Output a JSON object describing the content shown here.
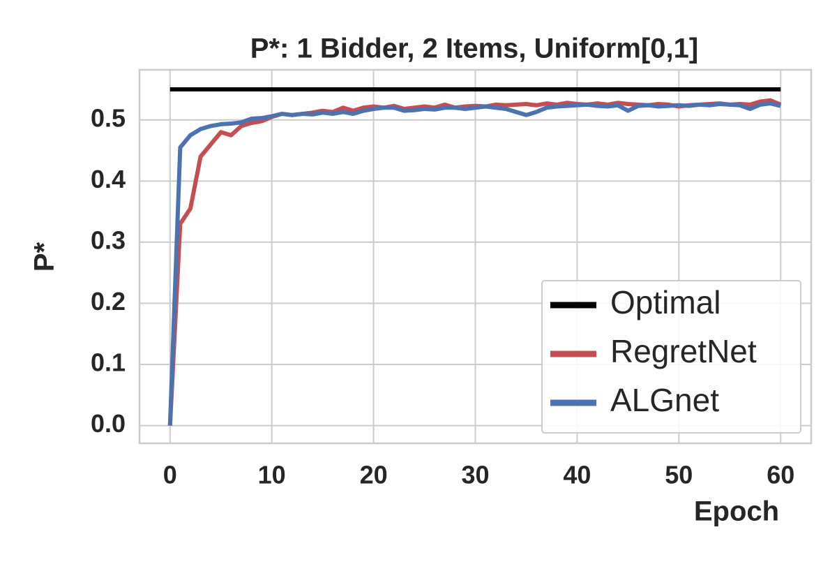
{
  "chart_data": {
    "type": "line",
    "title": "P*: 1 Bidder, 2 Items, Uniform[0,1]",
    "x_label": "Epoch",
    "y_label": "P*",
    "x": [
      0,
      1,
      2,
      3,
      4,
      5,
      6,
      7,
      8,
      9,
      10,
      11,
      12,
      13,
      14,
      15,
      16,
      17,
      18,
      19,
      20,
      21,
      22,
      23,
      24,
      25,
      26,
      27,
      28,
      29,
      30,
      31,
      32,
      33,
      34,
      35,
      36,
      37,
      38,
      39,
      40,
      41,
      42,
      43,
      44,
      45,
      46,
      47,
      48,
      49,
      50,
      51,
      52,
      53,
      54,
      55,
      56,
      57,
      58,
      59,
      60
    ],
    "series": [
      {
        "name": "Optimal",
        "color": "#000000",
        "x": [
          0,
          60
        ],
        "values": [
          0.55,
          0.55
        ]
      },
      {
        "name": "RegretNet",
        "color": "#c44e52",
        "values": [
          0,
          0.33,
          0.355,
          0.44,
          0.46,
          0.48,
          0.475,
          0.49,
          0.495,
          0.498,
          0.505,
          0.51,
          0.508,
          0.51,
          0.512,
          0.515,
          0.513,
          0.52,
          0.515,
          0.52,
          0.522,
          0.52,
          0.523,
          0.518,
          0.52,
          0.522,
          0.52,
          0.525,
          0.52,
          0.522,
          0.523,
          0.522,
          0.525,
          0.524,
          0.525,
          0.526,
          0.524,
          0.527,
          0.525,
          0.528,
          0.526,
          0.525,
          0.527,
          0.525,
          0.528,
          0.526,
          0.525,
          0.524,
          0.526,
          0.525,
          0.522,
          0.524,
          0.525,
          0.526,
          0.527,
          0.525,
          0.526,
          0.525,
          0.53,
          0.532,
          0.525
        ]
      },
      {
        "name": "ALGnet",
        "color": "#4c72b0",
        "values": [
          0,
          0.455,
          0.475,
          0.485,
          0.49,
          0.493,
          0.494,
          0.496,
          0.502,
          0.503,
          0.506,
          0.51,
          0.508,
          0.51,
          0.509,
          0.512,
          0.51,
          0.513,
          0.51,
          0.515,
          0.518,
          0.52,
          0.52,
          0.515,
          0.516,
          0.518,
          0.517,
          0.52,
          0.52,
          0.518,
          0.52,
          0.522,
          0.52,
          0.518,
          0.513,
          0.508,
          0.513,
          0.52,
          0.522,
          0.523,
          0.524,
          0.525,
          0.523,
          0.522,
          0.524,
          0.515,
          0.523,
          0.524,
          0.522,
          0.523,
          0.524,
          0.523,
          0.525,
          0.524,
          0.526,
          0.525,
          0.524,
          0.518,
          0.525,
          0.527,
          0.523
        ]
      }
    ],
    "xlim": [
      -3,
      63
    ],
    "ylim": [
      -0.029,
      0.582
    ],
    "xticks": [
      0,
      10,
      20,
      30,
      40,
      50,
      60
    ],
    "yticks": [
      {
        "value": 0,
        "label": "0.0"
      },
      0.1,
      0.2,
      0.3,
      0.4,
      0.5
    ],
    "grid": true,
    "legend": "lower right"
  }
}
